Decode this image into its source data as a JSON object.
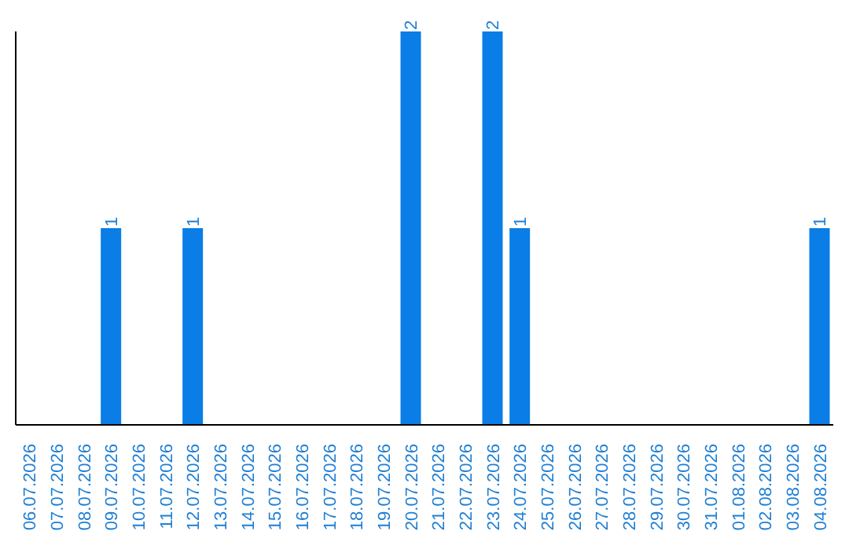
{
  "chart_data": {
    "type": "bar",
    "categories": [
      "06.07.2026",
      "07.07.2026",
      "08.07.2026",
      "09.07.2026",
      "10.07.2026",
      "11.07.2026",
      "12.07.2026",
      "13.07.2026",
      "14.07.2026",
      "15.07.2026",
      "16.07.2026",
      "17.07.2026",
      "18.07.2026",
      "19.07.2026",
      "20.07.2026",
      "21.07.2026",
      "22.07.2026",
      "23.07.2026",
      "24.07.2026",
      "25.07.2026",
      "26.07.2026",
      "27.07.2026",
      "28.07.2026",
      "29.07.2026",
      "30.07.2026",
      "31.07.2026",
      "01.08.2026",
      "02.08.2026",
      "03.08.2026",
      "04.08.2026"
    ],
    "values": [
      0,
      0,
      0,
      1,
      0,
      0,
      1,
      0,
      0,
      0,
      0,
      0,
      0,
      0,
      2,
      0,
      0,
      2,
      1,
      0,
      0,
      0,
      0,
      0,
      0,
      0,
      0,
      0,
      0,
      1
    ],
    "value_labels": [
      null,
      null,
      null,
      "1",
      null,
      null,
      "1",
      null,
      null,
      null,
      null,
      null,
      null,
      null,
      "2",
      null,
      null,
      "2",
      "1",
      null,
      null,
      null,
      null,
      null,
      null,
      null,
      null,
      null,
      null,
      "1"
    ],
    "color": "#0a7de6",
    "ylim": [
      0,
      2
    ],
    "tick_labels": "x"
  }
}
